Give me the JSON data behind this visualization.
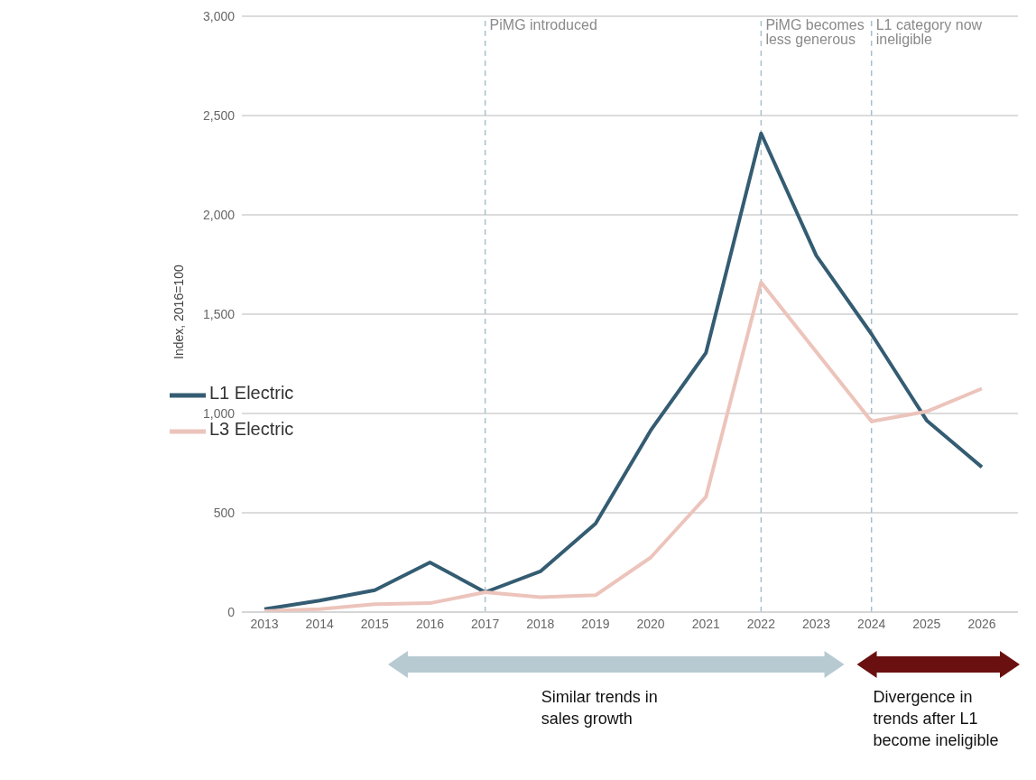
{
  "chart_data": {
    "type": "line",
    "ylabel": "Index, 2016=100",
    "categories": [
      "2013",
      "2014",
      "2015",
      "2016",
      "2017",
      "2018",
      "2019",
      "2020",
      "2021",
      "2022",
      "2023",
      "2024",
      "2025",
      "2026"
    ],
    "series": [
      {
        "name": "L1 Electric",
        "color": "#345c72",
        "values": [
          15,
          58,
          110,
          250,
          100,
          205,
          445,
          915,
          1305,
          2410,
          1795,
          1400,
          965,
          730
        ]
      },
      {
        "name": "L3 Electric",
        "color": "#ecc4bb",
        "values": [
          5,
          15,
          40,
          45,
          100,
          75,
          85,
          275,
          580,
          1660,
          1310,
          960,
          1010,
          1125
        ]
      }
    ],
    "ylim": [
      0,
      3000
    ],
    "yticks": [
      0,
      500,
      {
        "value": 1000,
        "label": "1,000"
      },
      {
        "value": 1500,
        "label": "1,500"
      },
      {
        "value": 2000,
        "label": "2,000"
      },
      {
        "value": 2500,
        "label": "2,500"
      },
      {
        "value": 3000,
        "label": "3,000"
      }
    ],
    "grid": "y",
    "legend": "left",
    "marker": "none",
    "line_style": "solid",
    "ref_lines": [
      {
        "axis": "x",
        "value": "2017",
        "label": "PiMG introduced",
        "color": "#a8c0cc",
        "line_style": "dashed"
      },
      {
        "axis": "x",
        "value": "2022",
        "label": "PiMG becomes less generous",
        "color": "#a8c0cc",
        "line_style": "dashed"
      },
      {
        "axis": "x",
        "value": "2024",
        "label": "L1 category now ineligible",
        "color": "#a8c0cc",
        "line_style": "dashed"
      }
    ],
    "annotations": [
      "Similar trends in sales growth",
      "Divergence in trends after L1 become ineligible"
    ]
  }
}
